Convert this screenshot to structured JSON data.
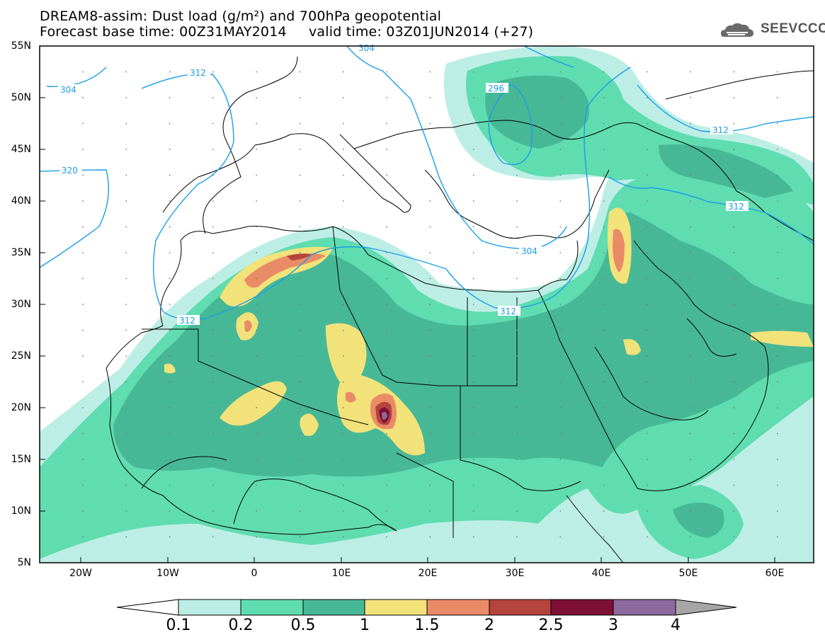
{
  "header": {
    "title_line1": "DREAM8-assim: Dust load (g/m²) and 700hPa geopotential",
    "title_line2": "Forecast base time: 00Z31MAY2014     valid time: 03Z01JUN2014 (+27)",
    "logo_text": "SEEVCCC"
  },
  "axes": {
    "lat_labels": [
      "55N",
      "50N",
      "45N",
      "40N",
      "35N",
      "30N",
      "25N",
      "20N",
      "15N",
      "10N",
      "5N"
    ],
    "lon_labels": [
      "20W",
      "10W",
      "0",
      "10E",
      "20E",
      "30E",
      "40E",
      "50E",
      "60E"
    ]
  },
  "contour_labels": [
    "304",
    "312",
    "304",
    "320",
    "296",
    "312",
    "312",
    "304",
    "312",
    "312"
  ],
  "colorbar": {
    "labels": [
      "0.1",
      "0.2",
      "0.5",
      "1",
      "1.5",
      "2",
      "2.5",
      "3",
      "4"
    ],
    "colors": [
      "#ffffff",
      "#bdeee6",
      "#5fdcb0",
      "#47b896",
      "#f2e27a",
      "#ea8b68",
      "#b4443c",
      "#7f1035",
      "#8c6a9e",
      "#a6a6a6"
    ]
  },
  "style": {
    "contour_color": "#1a9ee6",
    "border_color": "#000000"
  }
}
